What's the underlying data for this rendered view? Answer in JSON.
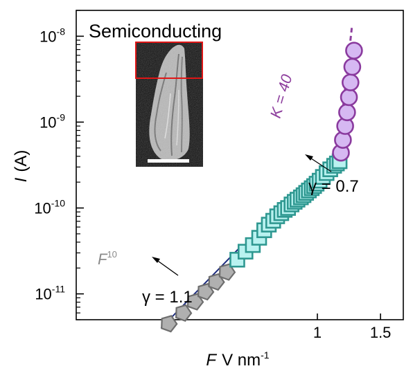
{
  "chart_data": {
    "type": "scatter",
    "title": "Semiconducting",
    "xlabel": {
      "var": "F",
      "unit": "V nm",
      "unit_exp": "-1"
    },
    "ylabel": {
      "var": "I",
      "unit": "(A)"
    },
    "x_scale": "reciprocal",
    "y_scale": "log",
    "x_ticks": [
      {
        "value": 1.0,
        "label": "1"
      },
      {
        "value": 1.5,
        "label": "1.5"
      }
    ],
    "y_ticks": [
      {
        "value": 1e-11,
        "base": "10",
        "exp": "-11"
      },
      {
        "value": 1e-10,
        "base": "10",
        "exp": "-10"
      },
      {
        "value": 1e-09,
        "base": "10",
        "exp": "-9"
      },
      {
        "value": 1e-08,
        "base": "10",
        "exp": "-8"
      }
    ],
    "xlim": [
      0.44,
      1.83
    ],
    "ylim": [
      5e-12,
      2e-08
    ],
    "grid": false,
    "legend": "none",
    "series": [
      {
        "marker": "pentagon",
        "color": "#b0b0b0",
        "edge": "#6e6e6e",
        "x": [
          0.56,
          0.585,
          0.607,
          0.628,
          0.651,
          0.676
        ],
        "y": [
          4.5e-12,
          6e-12,
          8.1e-12,
          1.06e-11,
          1.38e-11,
          1.8e-11
        ]
      },
      {
        "marker": "square",
        "color": "#b9f2f0",
        "edge": "#2f9891",
        "x": [
          0.703,
          0.725,
          0.746,
          0.765,
          0.781,
          0.796,
          0.811,
          0.825,
          0.84,
          0.853,
          0.866,
          0.88,
          0.893,
          0.905,
          0.92,
          0.932,
          0.944,
          0.957,
          0.971,
          0.983,
          0.996,
          1.012,
          1.03,
          1.051,
          1.073,
          1.097,
          1.115,
          1.133
        ],
        "y": [
          2.5e-11,
          3.1e-11,
          3.7e-11,
          4.5e-11,
          5.5e-11,
          6.4e-11,
          7.1e-11,
          8e-11,
          8.7e-11,
          9.5e-11,
          1e-10,
          1.1e-10,
          1.18e-10,
          1.25e-10,
          1.33e-10,
          1.41e-10,
          1.5e-10,
          1.6e-10,
          1.7e-10,
          1.8e-10,
          1.92e-10,
          2.08e-10,
          2.3e-10,
          2.55e-10,
          2.82e-10,
          3.1e-10,
          3.3e-10,
          3.5e-10
        ]
      },
      {
        "marker": "circle",
        "color": "#d6b8f2",
        "edge": "#8a3a9e",
        "x": [
          1.142,
          1.156,
          1.172,
          1.186,
          1.2,
          1.212,
          1.226,
          1.24
        ],
        "y": [
          4.4e-10,
          6.2e-10,
          9e-10,
          1.3e-09,
          1.95e-09,
          2.9e-09,
          4.4e-09,
          6.8e-09
        ]
      }
    ],
    "fits": [
      {
        "color": "#1d2c7e",
        "x": [
          0.548,
          0.716
        ],
        "y": [
          4e-12,
          3.7e-11
        ]
      }
    ],
    "fit_lines": [
      {
        "color": "#8e3f9e",
        "dashed": true,
        "x": [
          1.12,
          1.222
        ],
        "y": [
          4e-10,
          1.25e-08
        ]
      }
    ],
    "annotations": {
      "f10": {
        "base": "F",
        "exp": "10"
      },
      "gamma_low": "γ = 1.1",
      "gamma_high": "γ = 0.7",
      "k_label": "K = 40"
    },
    "inset": {
      "description": "SEM micrograph of a tip with a red box on the apex and a white scale bar"
    }
  }
}
